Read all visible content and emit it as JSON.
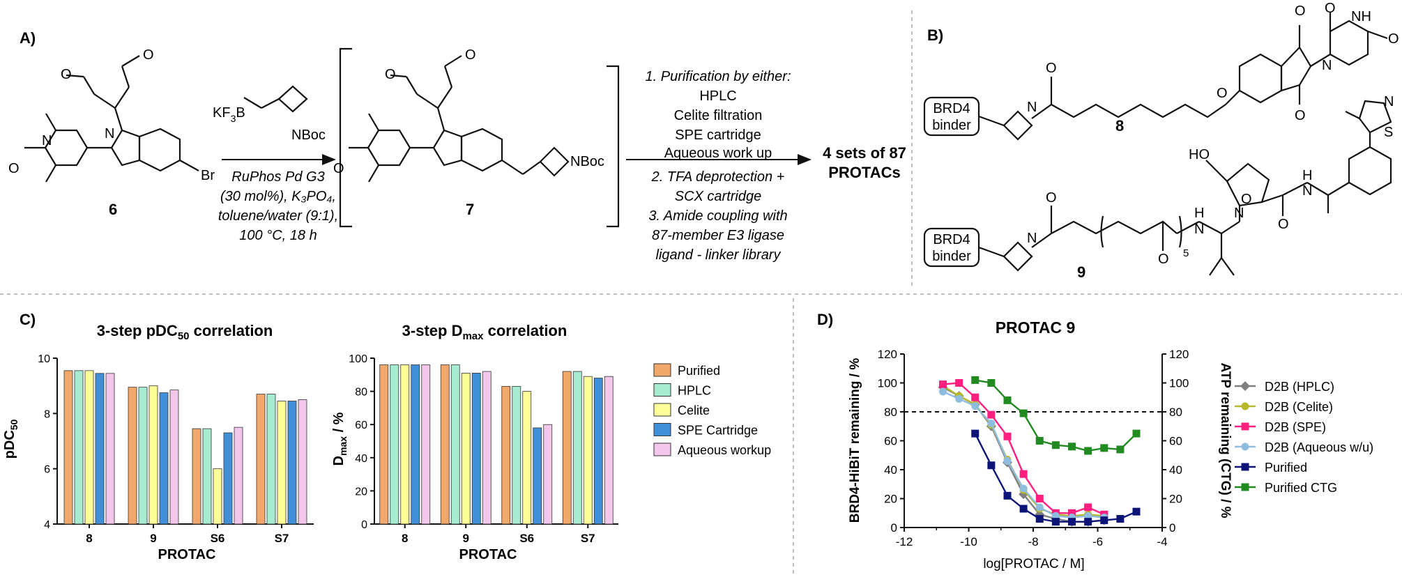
{
  "panel_labels": {
    "a": "A)",
    "b": "B)",
    "c": "C)",
    "d": "D)"
  },
  "scheme": {
    "compound_6": "6",
    "compound_7": "7",
    "br": "Br",
    "nboc_reagent": "NBoc",
    "nboc_product": "NBoc",
    "reagent_prefix": "KF",
    "reagent_sub": "3",
    "reagent_suffix": "B",
    "conditions": [
      "RuPhos Pd G3",
      "(30 mol%), K₃PO₄,",
      "toluene/water (9:1),",
      "100 °C, 18 h"
    ],
    "steps": [
      "1. Purification by either:",
      "HPLC",
      "Celite filtration",
      "SPE cartridge",
      "Aqueous work up",
      "2. TFA deprotection +",
      "SCX cartridge",
      "3. Amide coupling with",
      "87-member E3 ligase",
      "ligand - linker library"
    ],
    "result": [
      "4 sets of 87",
      "PROTACs"
    ]
  },
  "panel_b": {
    "binder_label": [
      "BRD4",
      "binder"
    ],
    "compound_8": "8",
    "compound_9": "9",
    "repeat_sub": "5",
    "ho": "HO",
    "nh": "NH",
    "h": "H"
  },
  "chart_data": [
    {
      "type": "bar",
      "title": "3-step pDC50 correlation",
      "xlabel": "PROTAC",
      "ylabel": "pDC50",
      "categories": [
        "8",
        "9",
        "S6",
        "S7"
      ],
      "ylim": [
        4,
        10
      ],
      "yticks": [
        "4",
        "6",
        "8",
        "10"
      ],
      "series": [
        {
          "name": "Purified",
          "values": [
            9.55,
            8.95,
            7.45,
            8.7
          ]
        },
        {
          "name": "HPLC",
          "values": [
            9.55,
            8.95,
            7.45,
            8.7
          ]
        },
        {
          "name": "Celite",
          "values": [
            9.55,
            9.0,
            6.0,
            8.45
          ]
        },
        {
          "name": "SPE Cartridge",
          "values": [
            9.45,
            8.75,
            7.3,
            8.45
          ]
        },
        {
          "name": "Aqueous workup",
          "values": [
            9.45,
            8.85,
            7.5,
            8.5
          ]
        }
      ]
    },
    {
      "type": "bar",
      "title": "3-step Dmax correlation",
      "xlabel": "PROTAC",
      "ylabel": "Dmax / %",
      "categories": [
        "8",
        "9",
        "S6",
        "S7"
      ],
      "ylim": [
        0,
        100
      ],
      "yticks": [
        "0",
        "20",
        "40",
        "60",
        "80",
        "100"
      ],
      "legend": "right",
      "series": [
        {
          "name": "Purified",
          "values": [
            96,
            96,
            83,
            92
          ]
        },
        {
          "name": "HPLC",
          "values": [
            96,
            96,
            83,
            92
          ]
        },
        {
          "name": "Celite",
          "values": [
            96,
            91,
            80,
            89
          ]
        },
        {
          "name": "SPE Cartridge",
          "values": [
            96,
            91,
            58,
            88
          ]
        },
        {
          "name": "Aqueous workup",
          "values": [
            96,
            92,
            60,
            89
          ]
        }
      ]
    },
    {
      "type": "line",
      "title": "PROTAC 9",
      "xlabel": "log[PROTAC / M]",
      "ylabel": "BRD4-HiBiT remaining / %",
      "y2label": "ATP remaining (CTG) / %",
      "xlim": [
        -12,
        -4
      ],
      "ylim": [
        0,
        120
      ],
      "xticks": [
        "-12",
        "-10",
        "-8",
        "-6",
        "-4"
      ],
      "yticks": [
        "0",
        "20",
        "40",
        "60",
        "80",
        "100",
        "120"
      ],
      "reference_line": 80,
      "legend": "right",
      "series": [
        {
          "name": "D2B (HPLC)",
          "x": [
            -10.8,
            -10.3,
            -9.8,
            -9.3,
            -8.8,
            -8.3,
            -7.8,
            -7.3,
            -6.8,
            -6.3,
            -5.8
          ],
          "y": [
            97,
            91,
            85,
            70,
            45,
            23,
            9,
            6,
            4,
            4,
            5
          ]
        },
        {
          "name": "D2B (Celite)",
          "x": [
            -10.8,
            -10.3,
            -9.8,
            -9.3,
            -8.8,
            -8.3,
            -7.8,
            -7.3,
            -6.8,
            -6.3,
            -5.8
          ],
          "y": [
            98,
            91,
            85,
            71,
            47,
            26,
            13,
            9,
            8,
            9,
            8
          ]
        },
        {
          "name": "D2B (SPE)",
          "x": [
            -10.8,
            -10.3,
            -9.8,
            -9.3,
            -8.8,
            -8.3,
            -7.8,
            -7.3,
            -6.8,
            -6.3,
            -5.8
          ],
          "y": [
            99,
            100,
            90,
            78,
            63,
            37,
            20,
            10,
            10,
            14,
            9
          ]
        },
        {
          "name": "D2B (Aqueous w/u)",
          "x": [
            -10.8,
            -10.3,
            -9.8,
            -9.3,
            -8.8,
            -8.3,
            -7.8,
            -7.3,
            -6.8,
            -6.3,
            -5.8
          ],
          "y": [
            94,
            89,
            84,
            72,
            46,
            27,
            14,
            8,
            7,
            8,
            7
          ]
        },
        {
          "name": "Purified",
          "x": [
            -9.8,
            -9.3,
            -8.8,
            -8.3,
            -7.8,
            -7.3,
            -6.8,
            -6.3,
            -5.8,
            -5.3,
            -4.8
          ],
          "y": [
            65,
            43,
            22,
            13,
            6,
            4,
            4,
            4,
            5,
            6,
            11
          ]
        },
        {
          "name": "Purified CTG",
          "x": [
            -9.8,
            -9.3,
            -8.8,
            -8.3,
            -7.8,
            -7.3,
            -6.8,
            -6.3,
            -5.8,
            -5.3,
            -4.8
          ],
          "y": [
            102,
            100,
            88,
            79,
            60,
            57,
            56,
            53,
            55,
            54,
            65
          ]
        }
      ]
    }
  ],
  "colors": {
    "bar": [
      "#f0a86b",
      "#a7ecd0",
      "#ffff99",
      "#3f8fd9",
      "#f3c6ec"
    ],
    "line": [
      "#7f7f7f",
      "#b6b82c",
      "#ff1f7f",
      "#8fbde0",
      "#0c1577",
      "#218a21"
    ]
  }
}
